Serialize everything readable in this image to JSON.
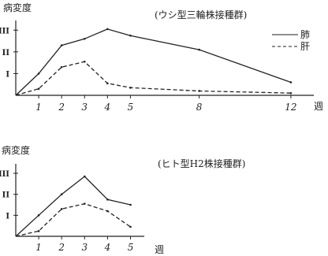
{
  "chart_data": [
    {
      "type": "line",
      "title": "(ウシ型三輪株接種群)",
      "ylabel": "病変度",
      "xlabel": "週",
      "y_tick_labels": [
        "I",
        "II",
        "III"
      ],
      "x_tick_labels": [
        "1",
        "2",
        "3",
        "4",
        "5",
        "8",
        "12"
      ],
      "x_ticks": [
        1,
        2,
        3,
        4,
        5,
        8,
        12
      ],
      "xlim": [
        0,
        13
      ],
      "ylim": [
        0,
        3.3
      ],
      "legend": "top-right",
      "series": [
        {
          "name": "肺",
          "style": "solid",
          "x": [
            0,
            1,
            2,
            3,
            4,
            5,
            8,
            12
          ],
          "values": [
            0,
            1.0,
            2.3,
            2.6,
            3.05,
            2.75,
            2.1,
            0.6
          ]
        },
        {
          "name": "肝",
          "style": "dashed",
          "x": [
            0,
            1,
            2,
            3,
            4,
            5,
            8,
            12
          ],
          "values": [
            0,
            0.3,
            1.3,
            1.55,
            0.55,
            0.35,
            0.2,
            0.1
          ]
        }
      ]
    },
    {
      "type": "line",
      "title": "(ヒト型H2株接種群)",
      "ylabel": "病変度",
      "xlabel": "週",
      "y_tick_labels": [
        "I",
        "II",
        "III"
      ],
      "x_tick_labels": [
        "1",
        "2",
        "3",
        "4",
        "5"
      ],
      "x_ticks": [
        1,
        2,
        3,
        4,
        5
      ],
      "xlim": [
        0,
        5.6
      ],
      "ylim": [
        0,
        3.3
      ],
      "series": [
        {
          "name": "肺",
          "style": "solid",
          "x": [
            0,
            1,
            2,
            3,
            4,
            5
          ],
          "values": [
            0,
            1.0,
            2.0,
            2.85,
            1.75,
            1.5
          ]
        },
        {
          "name": "肝",
          "style": "dashed",
          "x": [
            0,
            1,
            2,
            3,
            4,
            5
          ],
          "values": [
            0,
            0.25,
            1.3,
            1.55,
            1.2,
            0.45
          ]
        }
      ]
    }
  ]
}
